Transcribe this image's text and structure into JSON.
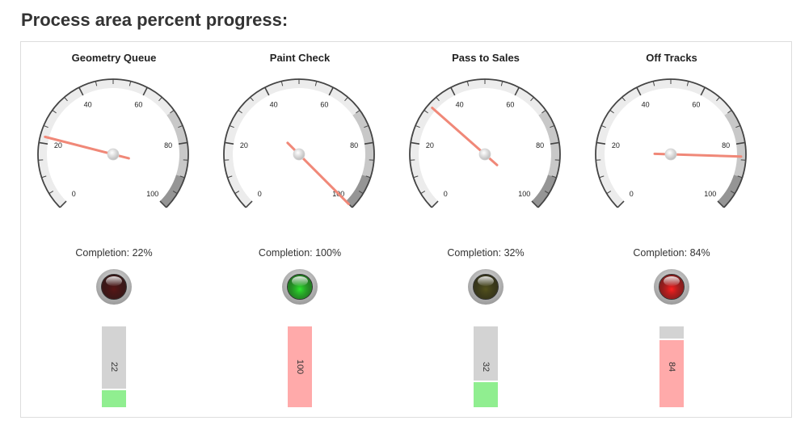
{
  "page": {
    "title": "Process area percent progress:"
  },
  "gauges": [
    {
      "title": "Geometry Queue",
      "value": 22,
      "completion_label": "Completion: 22%",
      "bar_label": "22",
      "indicator": "dark-red-off",
      "led_color": "#5a1515",
      "bar_color": "green"
    },
    {
      "title": "Paint Check",
      "value": 100,
      "completion_label": "Completion: 100%",
      "bar_label": "100",
      "indicator": "green-on",
      "led_color": "#2ee82e",
      "bar_color": "red"
    },
    {
      "title": "Pass to Sales",
      "value": 32,
      "completion_label": "Completion: 32%",
      "bar_label": "32",
      "indicator": "olive-off",
      "led_color": "#55531c",
      "bar_color": "green"
    },
    {
      "title": "Off Tracks",
      "value": 84,
      "completion_label": "Completion: 84%",
      "bar_label": "84",
      "indicator": "red-on",
      "led_color": "#ff2020",
      "bar_color": "red"
    }
  ],
  "scale": {
    "min": 0,
    "max": 100,
    "major_ticks": [
      "0",
      "20",
      "40",
      "60",
      "80",
      "100"
    ]
  },
  "colors": {
    "needle": "#f08878",
    "band_light": "#ececec",
    "band_mid": "#c8c8c8",
    "band_dark": "#959595",
    "bar_green": "#90ee90",
    "bar_red": "#ffaaaa",
    "bar_bg": "#d3d3d3"
  }
}
